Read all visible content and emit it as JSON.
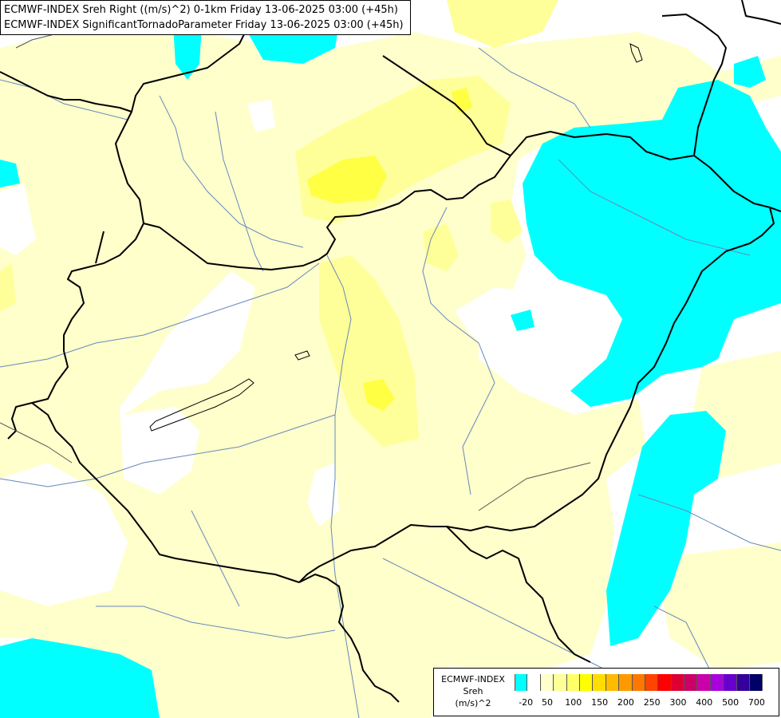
{
  "titles": {
    "line1": "ECMWF-INDEX Sreh Right ((m/s)^2) 0-1km Friday 13-06-2025 03:00 (+45h)",
    "line2": "ECMWF-INDEX SignificantTornadoParameter Friday 13-06-2025 03:00 (+45h)"
  },
  "legend": {
    "source": "ECMWF-INDEX",
    "variable": "Sreh",
    "unit": "(m/s)^2",
    "colors": [
      "#00ffff",
      "#ffffff",
      "#ffffcc",
      "#ffff99",
      "#ffff66",
      "#ffff00",
      "#ffdd00",
      "#ffbb00",
      "#ff9900",
      "#ff7700",
      "#ff4400",
      "#ff0000",
      "#dd0033",
      "#cc0066",
      "#cc00aa",
      "#aa00dd",
      "#6600cc",
      "#330099",
      "#000066"
    ],
    "ticks": [
      {
        "label": "-20",
        "index": 1
      },
      {
        "label": "50",
        "index": 3
      },
      {
        "label": "100",
        "index": 5
      },
      {
        "label": "150",
        "index": 7
      },
      {
        "label": "200",
        "index": 9
      },
      {
        "label": "250",
        "index": 11
      },
      {
        "label": "300",
        "index": 13
      },
      {
        "label": "400",
        "index": 15
      },
      {
        "label": "500",
        "index": 17
      },
      {
        "label": "700",
        "index": 19
      }
    ]
  },
  "map_colors": {
    "cyan": "#00ffff",
    "pale_yellow": "#ffffcc",
    "light_yellow": "#ffff99",
    "yellow": "#ffff66",
    "bright_yellow": "#ffff00",
    "border": "#000000",
    "river": "#6688bb"
  }
}
